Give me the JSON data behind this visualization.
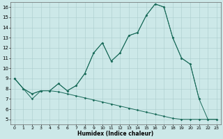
{
  "title": "",
  "xlabel": "Humidex (Indice chaleur)",
  "background_color": "#cce8e8",
  "grid_color": "#aacccc",
  "line_color": "#1a6b5a",
  "xlim": [
    -0.5,
    23.5
  ],
  "ylim": [
    4.5,
    16.5
  ],
  "xticks": [
    0,
    1,
    2,
    3,
    4,
    5,
    6,
    7,
    8,
    9,
    10,
    11,
    12,
    13,
    14,
    15,
    16,
    17,
    18,
    19,
    20,
    21,
    22,
    23
  ],
  "yticks": [
    5,
    6,
    7,
    8,
    9,
    10,
    11,
    12,
    13,
    14,
    15,
    16
  ],
  "line1_x": [
    0,
    1,
    2,
    3,
    4,
    5,
    6,
    7,
    8,
    9,
    10,
    11,
    12,
    13,
    14,
    15,
    16,
    17,
    18,
    19,
    20,
    21,
    22,
    23
  ],
  "line1_y": [
    9.0,
    8.0,
    7.5,
    7.8,
    7.8,
    8.5,
    7.8,
    8.3,
    9.5,
    11.5,
    12.5,
    10.7,
    11.5,
    13.2,
    13.5,
    15.2,
    16.3,
    16.0,
    13.0,
    11.0,
    10.4,
    7.0,
    5.0,
    5.0
  ],
  "line2_x": [
    0,
    1,
    2,
    3,
    4,
    5,
    6,
    7,
    8,
    9,
    10,
    11,
    12,
    13,
    14,
    15,
    16,
    17,
    18,
    19,
    20,
    21
  ],
  "line2_y": [
    9.0,
    8.0,
    7.5,
    7.8,
    7.8,
    8.5,
    7.8,
    8.3,
    9.5,
    11.5,
    12.5,
    10.7,
    11.5,
    13.2,
    13.5,
    15.2,
    16.3,
    16.0,
    13.0,
    11.0,
    10.4,
    7.0
  ],
  "line3_x": [
    0,
    2,
    3,
    4,
    5,
    6,
    7,
    8,
    9,
    10,
    11,
    12,
    13,
    14,
    15,
    16,
    17,
    18,
    19,
    20,
    21,
    22,
    23
  ],
  "line3_y": [
    9.0,
    7.0,
    7.8,
    7.8,
    7.7,
    7.5,
    7.3,
    7.1,
    6.9,
    6.7,
    6.5,
    6.3,
    6.1,
    5.9,
    5.7,
    5.5,
    5.3,
    5.1,
    5.0,
    5.0,
    5.0,
    5.0,
    5.0
  ]
}
